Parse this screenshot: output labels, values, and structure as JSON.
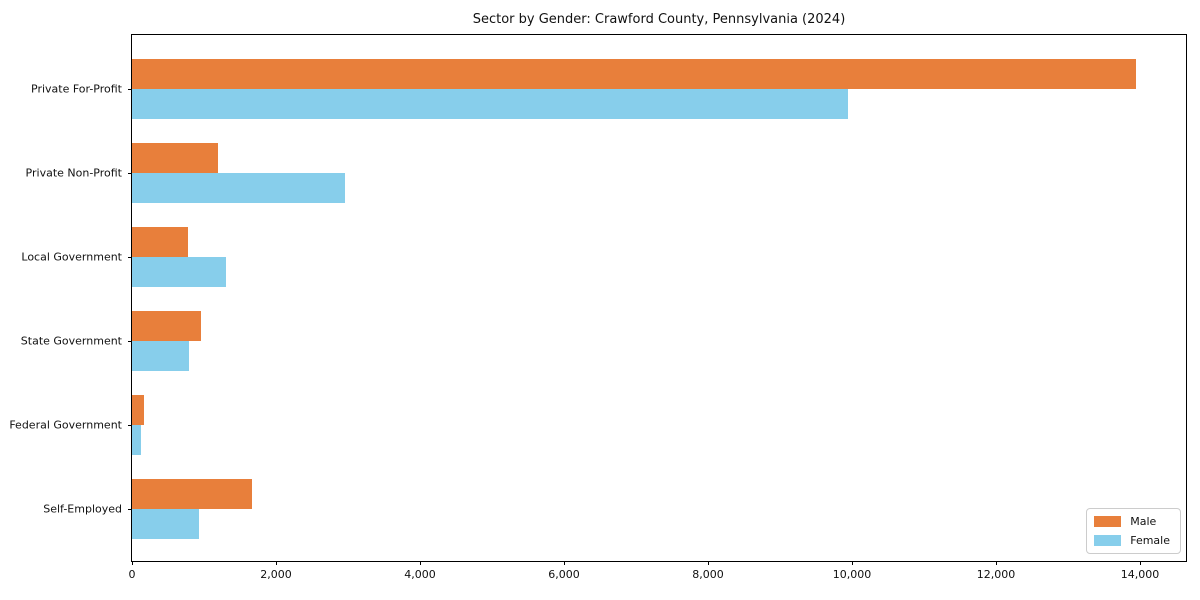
{
  "chart_data": {
    "type": "bar",
    "orientation": "horizontal",
    "title": "Sector by Gender: Crawford County, Pennsylvania (2024)",
    "categories": [
      "Private For-Profit",
      "Private Non-Profit",
      "Local Government",
      "State Government",
      "Federal Government",
      "Self-Employed"
    ],
    "series": [
      {
        "name": "Male",
        "color": "#e87f3b",
        "values": [
          13940,
          1200,
          780,
          960,
          170,
          1670
        ]
      },
      {
        "name": "Female",
        "color": "#87ceeb",
        "values": [
          9940,
          2960,
          1310,
          790,
          120,
          930
        ]
      }
    ],
    "xlabel": "",
    "ylabel": "",
    "xlim": [
      0,
      14667
    ],
    "x_ticks": [
      0,
      2000,
      4000,
      6000,
      8000,
      10000,
      12000,
      14000
    ],
    "x_tick_labels": [
      "0",
      "2,000",
      "4,000",
      "6,000",
      "8,000",
      "10,000",
      "12,000",
      "14,000"
    ],
    "grid": false,
    "legend": {
      "position": "lower right"
    },
    "colors": {
      "axis": "#000000",
      "background": "#ffffff",
      "legend_border": "#cccccc"
    }
  }
}
